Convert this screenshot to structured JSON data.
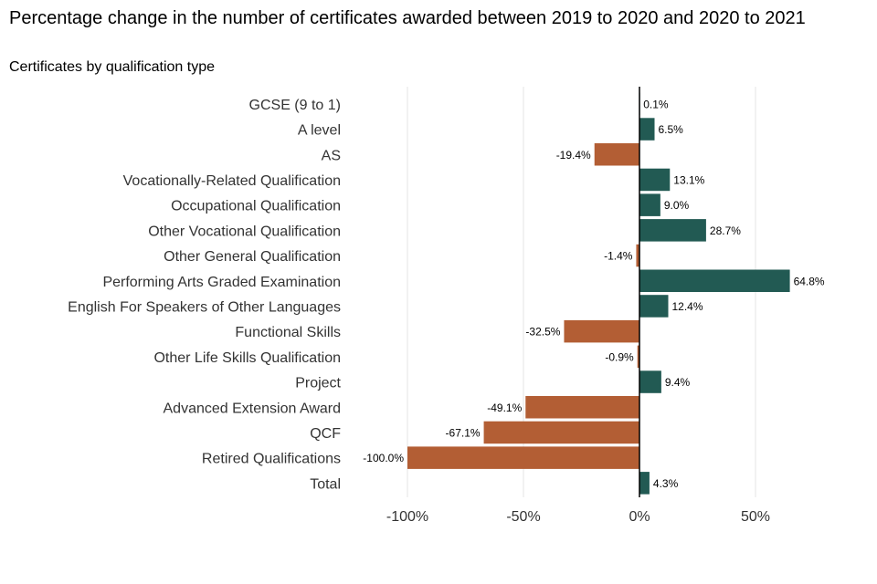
{
  "title": "Percentage change in the number of certificates awarded between 2019 to 2020 and 2020 to 2021",
  "subtitle": "Certificates by qualification type",
  "colors": {
    "positive": "#225A53",
    "negative": "#B35E34",
    "grid": "#e5e5e5",
    "zero": "#000000"
  },
  "chart_data": {
    "type": "bar",
    "orientation": "horizontal",
    "title": "Percentage change in the number of certificates awarded between 2019 to 2020 and 2020 to 2021",
    "subtitle": "Certificates by qualification type",
    "categories": [
      "GCSE (9 to 1)",
      "A level",
      "AS",
      "Vocationally-Related Qualification",
      "Occupational Qualification",
      "Other Vocational Qualification",
      "Other General Qualification",
      "Performing Arts Graded Examination",
      "English For Speakers of Other Languages",
      "Functional Skills",
      "Other Life Skills Qualification",
      "Project",
      "Advanced Extension Award",
      "QCF",
      "Retired Qualifications",
      "Total"
    ],
    "values": [
      0.1,
      6.5,
      -19.4,
      13.1,
      9.0,
      28.7,
      -1.4,
      64.8,
      12.4,
      -32.5,
      -0.9,
      9.4,
      -49.1,
      -67.1,
      -100.0,
      4.3
    ],
    "value_labels": [
      "0.1%",
      "6.5%",
      "-19.4%",
      "13.1%",
      "9.0%",
      "28.7%",
      "-1.4%",
      "64.8%",
      "12.4%",
      "-32.5%",
      "-0.9%",
      "9.4%",
      "-49.1%",
      "-67.1%",
      "-100.0%",
      "4.3%"
    ],
    "xlim": [
      -100,
      66
    ],
    "xticks": [
      -100,
      -50,
      0,
      50
    ],
    "xtick_labels": [
      "-100%",
      "-50%",
      "0%",
      "50%"
    ],
    "xlabel": "",
    "ylabel": "",
    "grid": true,
    "legend": "none"
  }
}
